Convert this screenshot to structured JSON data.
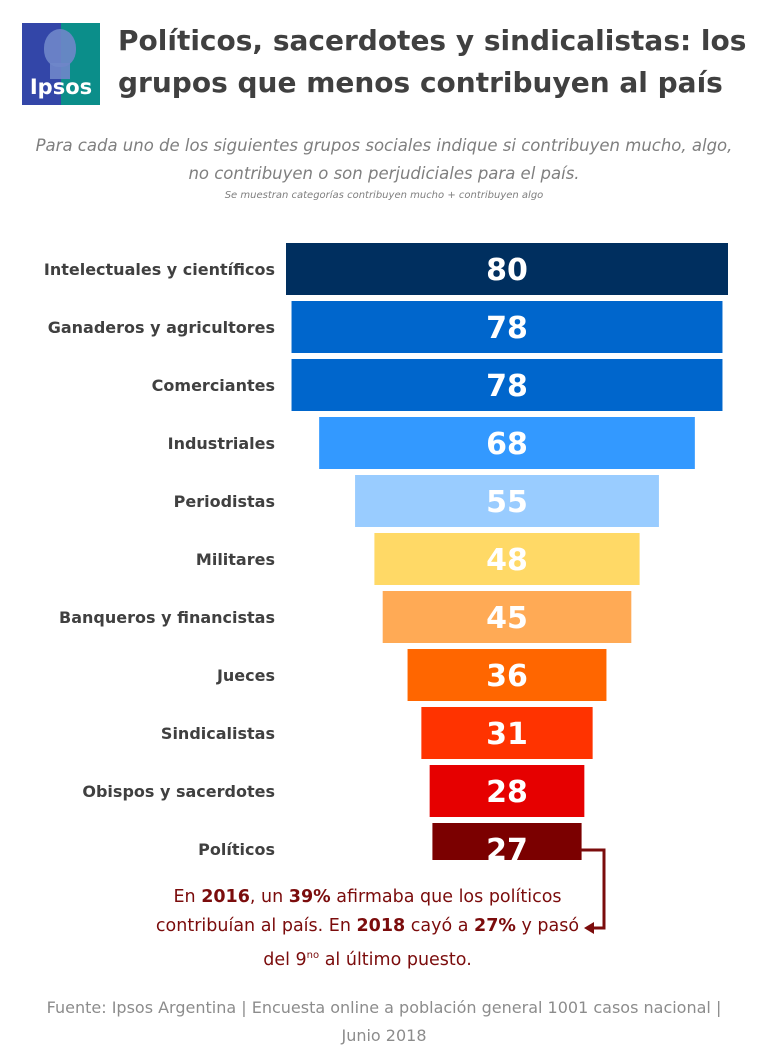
{
  "header": {
    "logo_text": "Ipsos",
    "title": "Políticos, sacerdotes y sindicalistas: los grupos que menos contribuyen al país",
    "subtitle": "Para cada uno de los siguientes grupos sociales indique si contribuyen mucho, algo, no contribuyen o son perjudiciales para el país.",
    "note": "Se muestran categorías contribuyen mucho + contribuyen algo"
  },
  "chart_data": {
    "type": "bar",
    "orientation": "horizontal-centered",
    "title": "Políticos, sacerdotes y sindicalistas: los grupos que menos contribuyen al país",
    "xlabel": "",
    "ylabel": "",
    "ylim": [
      0,
      80
    ],
    "categories": [
      "Intelectuales y científicos",
      "Ganaderos y agricultores",
      "Comerciantes",
      "Industriales",
      "Periodistas",
      "Militares",
      "Banqueros y financistas",
      "Jueces",
      "Sindicalistas",
      "Obispos y sacerdotes",
      "Políticos"
    ],
    "values": [
      80,
      78,
      78,
      68,
      55,
      48,
      45,
      36,
      31,
      28,
      27
    ],
    "colors": [
      "#002f5f",
      "#0066cc",
      "#0066cc",
      "#3399ff",
      "#99ccff",
      "#ffd966",
      "#ffaa55",
      "#ff6600",
      "#ff3300",
      "#e60000",
      "#7b0000"
    ],
    "label_colors": [
      "#ffffff",
      "#ffffff",
      "#ffffff",
      "#ffffff",
      "#ffffff",
      "#ffffff",
      "#ffffff",
      "#ffffff",
      "#ffffff",
      "#ffffff",
      "#ffffff"
    ]
  },
  "annotation": {
    "p1": "En ",
    "y2016": "2016",
    "p2": ", un ",
    "pct39": "39%",
    "p3": " afirmaba que los políticos contribuían al país. En ",
    "y2018": "2018",
    "p4": " cayó a ",
    "pct27": "27%",
    "p5": " y pasó del 9",
    "sup": "no",
    "p6": " al último puesto."
  },
  "footer": {
    "source": "Fuente: Ipsos Argentina | Encuesta online a población general 1001 casos nacional | Junio 2018"
  },
  "colors": {
    "title": "#404040",
    "annotation": "#7b0c0c"
  }
}
